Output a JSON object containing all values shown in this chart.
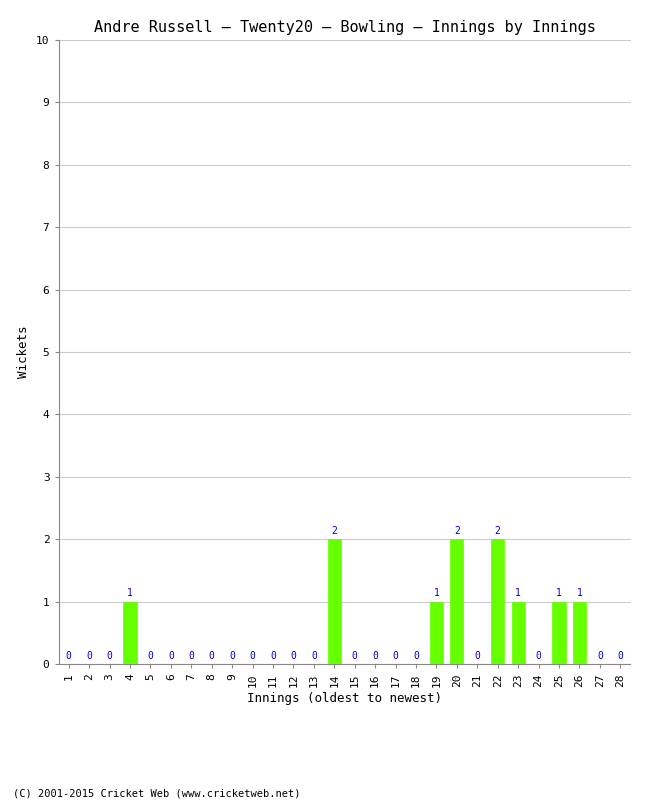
{
  "title": "Andre Russell – Twenty20 – Bowling – Innings by Innings",
  "xlabel": "Innings (oldest to newest)",
  "ylabel": "Wickets",
  "innings": [
    1,
    2,
    3,
    4,
    5,
    6,
    7,
    8,
    9,
    10,
    11,
    12,
    13,
    14,
    15,
    16,
    17,
    18,
    19,
    20,
    21,
    22,
    23,
    24,
    25,
    26,
    27,
    28
  ],
  "wickets": [
    0,
    0,
    0,
    1,
    0,
    0,
    0,
    0,
    0,
    0,
    0,
    0,
    0,
    2,
    0,
    0,
    0,
    0,
    1,
    2,
    0,
    2,
    1,
    0,
    1,
    1,
    0,
    0
  ],
  "bar_color": "#66ff00",
  "bar_edge_color": "#66ff00",
  "label_color": "#0000cc",
  "background_color": "#ffffff",
  "grid_color": "#cccccc",
  "ylim": [
    0,
    10
  ],
  "yticks": [
    0,
    1,
    2,
    3,
    4,
    5,
    6,
    7,
    8,
    9,
    10
  ],
  "title_fontsize": 11,
  "axis_label_fontsize": 9,
  "tick_fontsize": 8,
  "bar_label_fontsize": 7,
  "footer_text": "(C) 2001-2015 Cricket Web (www.cricketweb.net)",
  "footer_fontsize": 7.5
}
